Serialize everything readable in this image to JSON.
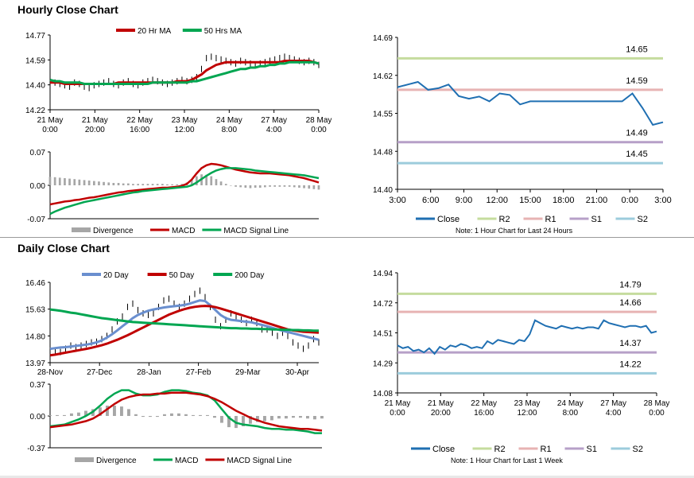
{
  "sections": {
    "hourly_title": "Hourly Close Chart",
    "daily_title": "Daily Close Chart"
  },
  "colors": {
    "close": "#1f6fb2",
    "r2": "#c5dc9e",
    "r1": "#e7b3b3",
    "s1": "#b7a0c8",
    "s2": "#9cccdc",
    "ma_red": "#c00000",
    "ma_green": "#00a651",
    "ma_blue": "#6a8fcf",
    "divergence": "#a6a6a6",
    "price": "#000000"
  },
  "chart_data": [
    {
      "id": "hourly_price",
      "type": "line",
      "ylim": [
        14.22,
        14.77
      ],
      "yticks": [
        "14.77",
        "14.59",
        "14.40",
        "14.22"
      ],
      "xticks": [
        [
          "21 May",
          "0:00"
        ],
        [
          "21 May",
          "20:00"
        ],
        [
          "22 May",
          "16:00"
        ],
        [
          "23 May",
          "12:00"
        ],
        [
          "24 May",
          "8:00"
        ],
        [
          "27 May",
          "4:00"
        ],
        [
          "28 May",
          "0:00"
        ]
      ],
      "legend": [
        {
          "name": "20 Hr MA",
          "color": "#c00000"
        },
        {
          "name": "50 Hrs MA",
          "color": "#00a651"
        }
      ],
      "price": [
        14.43,
        14.42,
        14.41,
        14.4,
        14.39,
        14.42,
        14.41,
        14.39,
        14.38,
        14.4,
        14.41,
        14.42,
        14.43,
        14.41,
        14.4,
        14.42,
        14.43,
        14.41,
        14.4,
        14.42,
        14.43,
        14.44,
        14.43,
        14.42,
        14.41,
        14.42,
        14.43,
        14.44,
        14.43,
        14.44,
        14.46,
        14.52,
        14.6,
        14.61,
        14.6,
        14.59,
        14.58,
        14.57,
        14.56,
        14.58,
        14.57,
        14.56,
        14.55,
        14.56,
        14.57,
        14.58,
        14.59,
        14.6,
        14.61,
        14.6,
        14.59,
        14.58,
        14.57,
        14.58,
        14.57,
        14.55
      ],
      "series": [
        {
          "name": "20 Hr MA",
          "color": "#c00000",
          "values": [
            14.42,
            14.42,
            14.42,
            14.41,
            14.41,
            14.41,
            14.41,
            14.41,
            14.41,
            14.41,
            14.41,
            14.41,
            14.41,
            14.41,
            14.42,
            14.42,
            14.42,
            14.42,
            14.42,
            14.42,
            14.42,
            14.42,
            14.42,
            14.42,
            14.42,
            14.42,
            14.43,
            14.43,
            14.43,
            14.44,
            14.46,
            14.48,
            14.51,
            14.53,
            14.55,
            14.56,
            14.57,
            14.57,
            14.57,
            14.57,
            14.57,
            14.57,
            14.57,
            14.57,
            14.57,
            14.57,
            14.57,
            14.57,
            14.58,
            14.58,
            14.58,
            14.58,
            14.58,
            14.58,
            14.57,
            14.56
          ]
        },
        {
          "name": "50 Hrs MA",
          "color": "#00a651",
          "values": [
            14.44,
            14.43,
            14.43,
            14.42,
            14.42,
            14.42,
            14.42,
            14.41,
            14.41,
            14.41,
            14.41,
            14.41,
            14.41,
            14.41,
            14.41,
            14.41,
            14.41,
            14.41,
            14.41,
            14.41,
            14.41,
            14.42,
            14.42,
            14.42,
            14.42,
            14.42,
            14.42,
            14.42,
            14.42,
            14.43,
            14.43,
            14.44,
            14.45,
            14.46,
            14.47,
            14.48,
            14.49,
            14.5,
            14.51,
            14.52,
            14.52,
            14.53,
            14.53,
            14.54,
            14.54,
            14.55,
            14.55,
            14.56,
            14.56,
            14.57,
            14.57,
            14.57,
            14.57,
            14.57,
            14.57,
            14.56
          ]
        }
      ]
    },
    {
      "id": "hourly_macd",
      "type": "line",
      "ylim": [
        -0.07,
        0.07
      ],
      "yticks": [
        "0.07",
        "0.00",
        "-0.07"
      ],
      "legend": [
        {
          "name": "Divergence",
          "color": "#a6a6a6"
        },
        {
          "name": "MACD",
          "color": "#c00000"
        },
        {
          "name": "MACD Signal Line",
          "color": "#00a651"
        }
      ],
      "series": [
        {
          "name": "MACD",
          "color": "#c00000",
          "values": [
            -0.04,
            -0.038,
            -0.036,
            -0.034,
            -0.033,
            -0.031,
            -0.03,
            -0.028,
            -0.026,
            -0.025,
            -0.023,
            -0.021,
            -0.019,
            -0.017,
            -0.015,
            -0.014,
            -0.012,
            -0.011,
            -0.01,
            -0.009,
            -0.008,
            -0.007,
            -0.006,
            -0.005,
            -0.005,
            -0.004,
            -0.003,
            -0.001,
            0.003,
            0.012,
            0.025,
            0.036,
            0.042,
            0.045,
            0.044,
            0.042,
            0.039,
            0.036,
            0.033,
            0.031,
            0.029,
            0.027,
            0.026,
            0.025,
            0.025,
            0.025,
            0.024,
            0.023,
            0.022,
            0.021,
            0.019,
            0.017,
            0.015,
            0.012,
            0.009,
            0.006
          ]
        },
        {
          "name": "MACD Signal Line",
          "color": "#00a651",
          "values": [
            -0.06,
            -0.055,
            -0.051,
            -0.047,
            -0.044,
            -0.041,
            -0.038,
            -0.035,
            -0.033,
            -0.031,
            -0.029,
            -0.027,
            -0.025,
            -0.023,
            -0.021,
            -0.019,
            -0.017,
            -0.015,
            -0.014,
            -0.012,
            -0.011,
            -0.01,
            -0.009,
            -0.008,
            -0.007,
            -0.006,
            -0.005,
            -0.004,
            -0.003,
            0.0,
            0.006,
            0.013,
            0.02,
            0.026,
            0.031,
            0.034,
            0.036,
            0.036,
            0.036,
            0.035,
            0.034,
            0.033,
            0.031,
            0.03,
            0.029,
            0.028,
            0.027,
            0.026,
            0.025,
            0.024,
            0.023,
            0.022,
            0.021,
            0.019,
            0.017,
            0.015
          ]
        },
        {
          "name": "Divergence",
          "color": "#a6a6a6",
          "values": [
            0.018,
            0.017,
            0.016,
            0.015,
            0.014,
            0.013,
            0.012,
            0.011,
            0.01,
            0.009,
            0.008,
            0.007,
            0.006,
            0.005,
            0.005,
            0.004,
            0.004,
            0.003,
            0.003,
            0.003,
            0.003,
            0.003,
            0.003,
            0.003,
            0.002,
            0.002,
            0.002,
            0.003,
            0.006,
            0.012,
            0.019,
            0.023,
            0.022,
            0.019,
            0.013,
            0.008,
            0.003,
            0.0,
            -0.003,
            -0.004,
            -0.005,
            -0.006,
            -0.005,
            -0.005,
            -0.004,
            -0.003,
            -0.003,
            -0.003,
            -0.003,
            -0.003,
            -0.004,
            -0.005,
            -0.006,
            -0.007,
            -0.008,
            -0.009
          ]
        }
      ]
    },
    {
      "id": "hourly_levels",
      "type": "line",
      "ylim": [
        14.4,
        14.69
      ],
      "yticks": [
        "14.69",
        "14.62",
        "14.55",
        "14.48",
        "14.40"
      ],
      "xticks": [
        "3:00",
        "6:00",
        "9:00",
        "12:00",
        "15:00",
        "18:00",
        "21:00",
        "0:00",
        "3:00"
      ],
      "levels": [
        {
          "name": "R2",
          "value": 14.65,
          "label": "14.65"
        },
        {
          "name": "R1",
          "value": 14.59,
          "label": "14.59"
        },
        {
          "name": "S1",
          "value": 14.49,
          "label": "14.49"
        },
        {
          "name": "S2",
          "value": 14.45,
          "label": "14.45"
        }
      ],
      "series": [
        {
          "name": "Close",
          "values": [
            14.595,
            14.6,
            14.605,
            14.59,
            14.593,
            14.6,
            14.578,
            14.573,
            14.577,
            14.568,
            14.583,
            14.58,
            14.562,
            14.568,
            14.568,
            14.568,
            14.568,
            14.568,
            14.568,
            14.568,
            14.568,
            14.568,
            14.568,
            14.583,
            14.555,
            14.523,
            14.528
          ]
        }
      ],
      "note": "Note: 1 Hour Chart for Last 24 Hours"
    },
    {
      "id": "daily_price",
      "type": "line",
      "ylim": [
        13.97,
        16.46
      ],
      "yticks": [
        "16.46",
        "15.63",
        "14.80",
        "13.97"
      ],
      "xticks": [
        "28-Nov",
        "27-Dec",
        "28-Jan",
        "27-Feb",
        "29-Mar",
        "30-Apr"
      ],
      "legend": [
        {
          "name": "20 Day",
          "color": "#6a8fcf"
        },
        {
          "name": "50 Day",
          "color": "#c00000"
        },
        {
          "name": "200 Day",
          "color": "#00a651"
        }
      ],
      "price": [
        14.3,
        14.35,
        14.3,
        14.4,
        14.5,
        14.45,
        14.5,
        14.55,
        14.6,
        14.62,
        14.7,
        14.8,
        15.0,
        15.25,
        15.4,
        15.7,
        15.8,
        15.6,
        15.5,
        15.45,
        15.5,
        15.7,
        15.9,
        15.95,
        15.8,
        15.7,
        15.8,
        15.95,
        16.1,
        16.2,
        16.0,
        15.7,
        15.3,
        15.1,
        15.3,
        15.5,
        15.4,
        15.3,
        15.2,
        15.3,
        15.2,
        15.0,
        15.0,
        14.9,
        14.8,
        14.9,
        14.8,
        14.6,
        14.5,
        14.4,
        14.5,
        14.7,
        14.6
      ],
      "series": [
        {
          "name": "20 Day",
          "color": "#6a8fcf",
          "values": [
            14.4,
            14.42,
            14.44,
            14.45,
            14.47,
            14.49,
            14.51,
            14.53,
            14.56,
            14.6,
            14.66,
            14.75,
            14.85,
            14.97,
            15.1,
            15.22,
            15.35,
            15.45,
            15.52,
            15.58,
            15.62,
            15.65,
            15.68,
            15.7,
            15.72,
            15.74,
            15.76,
            15.8,
            15.85,
            15.9,
            15.88,
            15.75,
            15.6,
            15.45,
            15.35,
            15.3,
            15.28,
            15.26,
            15.24,
            15.22,
            15.18,
            15.14,
            15.1,
            15.05,
            15.0,
            14.96,
            14.92,
            14.88,
            14.84,
            14.8,
            14.76,
            14.72,
            14.68
          ]
        },
        {
          "name": "50 Day",
          "color": "#c00000",
          "values": [
            14.2,
            14.22,
            14.25,
            14.28,
            14.31,
            14.34,
            14.37,
            14.4,
            14.43,
            14.47,
            14.51,
            14.56,
            14.62,
            14.68,
            14.75,
            14.82,
            14.9,
            14.98,
            15.06,
            15.14,
            15.22,
            15.3,
            15.38,
            15.46,
            15.52,
            15.58,
            15.63,
            15.67,
            15.7,
            15.72,
            15.73,
            15.72,
            15.69,
            15.65,
            15.6,
            15.55,
            15.5,
            15.45,
            15.4,
            15.35,
            15.3,
            15.25,
            15.2,
            15.15,
            15.1,
            15.05,
            15.0,
            14.97,
            14.95,
            14.93,
            14.92,
            14.91,
            14.9
          ]
        },
        {
          "name": "200 Day",
          "color": "#00a651",
          "values": [
            15.62,
            15.6,
            15.58,
            15.55,
            15.52,
            15.5,
            15.47,
            15.44,
            15.41,
            15.38,
            15.35,
            15.33,
            15.31,
            15.29,
            15.27,
            15.25,
            15.23,
            15.22,
            15.21,
            15.2,
            15.19,
            15.18,
            15.17,
            15.16,
            15.15,
            15.14,
            15.13,
            15.12,
            15.11,
            15.1,
            15.09,
            15.08,
            15.07,
            15.06,
            15.05,
            15.04,
            15.04,
            15.03,
            15.03,
            15.02,
            15.02,
            15.01,
            15.01,
            15.0,
            15.0,
            14.99,
            14.99,
            14.98,
            14.98,
            14.97,
            14.97,
            14.96,
            14.96
          ]
        }
      ]
    },
    {
      "id": "daily_macd",
      "type": "line",
      "ylim": [
        -0.37,
        0.37
      ],
      "yticks": [
        "0.37",
        "0.00",
        "-0.37"
      ],
      "legend": [
        {
          "name": "Divergence",
          "color": "#a6a6a6"
        },
        {
          "name": "MACD",
          "color": "#00a651"
        },
        {
          "name": "MACD Signal Line",
          "color": "#c00000"
        }
      ],
      "series": [
        {
          "name": "MACD",
          "color": "#00a651",
          "values": [
            -0.12,
            -0.11,
            -0.1,
            -0.07,
            -0.04,
            0.0,
            0.05,
            0.12,
            0.2,
            0.26,
            0.3,
            0.3,
            0.26,
            0.24,
            0.24,
            0.25,
            0.28,
            0.3,
            0.3,
            0.29,
            0.27,
            0.26,
            0.24,
            0.18,
            0.08,
            -0.02,
            -0.08,
            -0.1,
            -0.11,
            -0.12,
            -0.14,
            -0.15,
            -0.15,
            -0.16,
            -0.16,
            -0.17,
            -0.18,
            -0.2,
            -0.2
          ]
        },
        {
          "name": "MACD Signal Line",
          "color": "#c00000",
          "values": [
            -0.13,
            -0.12,
            -0.11,
            -0.1,
            -0.08,
            -0.06,
            -0.03,
            0.02,
            0.08,
            0.14,
            0.19,
            0.22,
            0.24,
            0.25,
            0.25,
            0.26,
            0.26,
            0.27,
            0.27,
            0.27,
            0.26,
            0.25,
            0.23,
            0.2,
            0.16,
            0.11,
            0.06,
            0.02,
            -0.02,
            -0.05,
            -0.08,
            -0.1,
            -0.12,
            -0.13,
            -0.14,
            -0.15,
            -0.15,
            -0.16,
            -0.17
          ]
        },
        {
          "name": "Divergence",
          "color": "#a6a6a6",
          "values": [
            0.01,
            0.01,
            0.01,
            0.03,
            0.04,
            0.06,
            0.08,
            0.1,
            0.12,
            0.12,
            0.11,
            0.08,
            0.02,
            -0.01,
            -0.01,
            -0.01,
            0.02,
            0.03,
            0.03,
            0.02,
            0.01,
            0.01,
            0.01,
            -0.02,
            -0.08,
            -0.13,
            -0.14,
            -0.12,
            -0.09,
            -0.07,
            -0.06,
            -0.05,
            -0.03,
            -0.03,
            -0.02,
            -0.02,
            -0.03,
            -0.04,
            -0.03
          ]
        }
      ]
    },
    {
      "id": "daily_levels",
      "type": "line",
      "ylim": [
        14.08,
        14.94
      ],
      "yticks": [
        "14.94",
        "14.72",
        "14.51",
        "14.29",
        "14.08"
      ],
      "xticks": [
        [
          "21 May",
          "0:00"
        ],
        [
          "21 May",
          "20:00"
        ],
        [
          "22 May",
          "16:00"
        ],
        [
          "23 May",
          "12:00"
        ],
        [
          "24 May",
          "8:00"
        ],
        [
          "27 May",
          "4:00"
        ],
        [
          "28 May",
          "0:00"
        ]
      ],
      "levels": [
        {
          "name": "R2",
          "value": 14.79,
          "label": "14.79"
        },
        {
          "name": "R1",
          "value": 14.66,
          "label": "14.66"
        },
        {
          "name": "S1",
          "value": 14.37,
          "label": "14.37"
        },
        {
          "name": "S2",
          "value": 14.22,
          "label": "14.22"
        }
      ],
      "series": [
        {
          "name": "Close",
          "values": [
            14.42,
            14.4,
            14.41,
            14.38,
            14.39,
            14.37,
            14.4,
            14.36,
            14.41,
            14.39,
            14.42,
            14.41,
            14.43,
            14.42,
            14.4,
            14.41,
            14.4,
            14.45,
            14.43,
            14.46,
            14.45,
            14.44,
            14.43,
            14.46,
            14.45,
            14.5,
            14.6,
            14.58,
            14.56,
            14.55,
            14.54,
            14.56,
            14.55,
            14.54,
            14.55,
            14.54,
            14.55,
            14.55,
            14.54,
            14.6,
            14.58,
            14.57,
            14.56,
            14.55,
            14.56,
            14.56,
            14.55,
            14.56,
            14.51,
            14.52
          ]
        }
      ],
      "note": "Note: 1 Hour Chart for Last 1 Week"
    }
  ]
}
